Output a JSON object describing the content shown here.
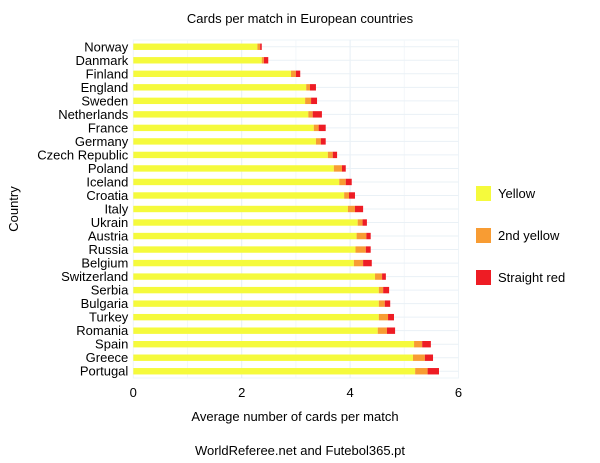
{
  "chart_data": {
    "type": "bar",
    "orientation": "horizontal",
    "stacked": true,
    "title": "Cards per match in European countries",
    "xlabel": "Average number of cards per match",
    "ylabel": "Country",
    "caption": "WorldReferee.net and Futebol365.pt",
    "xlim": [
      0,
      6
    ],
    "xticks": [
      0,
      2,
      4,
      6
    ],
    "grid": true,
    "legend_position": "right",
    "categories": [
      "Norway",
      "Danmark",
      "Finland",
      "England",
      "Sweden",
      "Netherlands",
      "France",
      "Germany",
      "Czech Republic",
      "Poland",
      "Iceland",
      "Croatia",
      "Italy",
      "Ukrain",
      "Austria",
      "Russia",
      "Belgium",
      "Switzerland",
      "Serbia",
      "Bulgaria",
      "Turkey",
      "Romania",
      "Spain",
      "Greece",
      "Portugal"
    ],
    "series": [
      {
        "name": "Yellow",
        "color": "#f5fa3c",
        "values": [
          2.29,
          2.37,
          2.91,
          3.19,
          3.17,
          3.23,
          3.33,
          3.37,
          3.59,
          3.7,
          3.8,
          3.89,
          3.96,
          4.14,
          4.12,
          4.1,
          4.07,
          4.46,
          4.53,
          4.53,
          4.53,
          4.51,
          5.18,
          5.16,
          5.2
        ]
      },
      {
        "name": "2nd yellow",
        "color": "#f89c33",
        "values": [
          0.05,
          0.04,
          0.09,
          0.07,
          0.11,
          0.08,
          0.09,
          0.09,
          0.09,
          0.15,
          0.12,
          0.09,
          0.13,
          0.09,
          0.18,
          0.19,
          0.17,
          0.13,
          0.08,
          0.11,
          0.17,
          0.17,
          0.15,
          0.22,
          0.23
        ]
      },
      {
        "name": "Straight red",
        "color": "#ee1c24",
        "values": [
          0.03,
          0.08,
          0.08,
          0.11,
          0.11,
          0.17,
          0.13,
          0.09,
          0.08,
          0.07,
          0.11,
          0.11,
          0.15,
          0.08,
          0.08,
          0.09,
          0.16,
          0.07,
          0.11,
          0.1,
          0.11,
          0.15,
          0.16,
          0.15,
          0.21
        ]
      }
    ]
  }
}
